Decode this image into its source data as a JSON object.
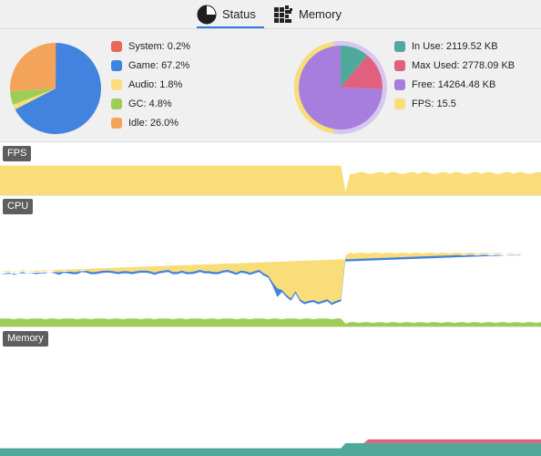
{
  "tabs": [
    {
      "label": "Status",
      "icon": "pie-chart-icon",
      "selected": true
    },
    {
      "label": "Memory",
      "icon": "memory-blocks-icon",
      "selected": false
    }
  ],
  "status_pie": {
    "legend": [
      {
        "label": "System: 0.2%",
        "color": "#e8685a"
      },
      {
        "label": "Game: 67.2%",
        "color": "#4383e0"
      },
      {
        "label": "Audio: 1.8%",
        "color": "#f8dd78"
      },
      {
        "label": "GC: 4.8%",
        "color": "#9dcd55"
      },
      {
        "label": "Idle: 26.0%",
        "color": "#f4a45a"
      }
    ]
  },
  "memory_pie": {
    "legend": [
      {
        "label": "In Use: 2119.52 KB",
        "color": "#4faa9c"
      },
      {
        "label": "Max Used: 2778.09 KB",
        "color": "#e0607e"
      },
      {
        "label": "Free: 14264.48 KB",
        "color": "#a77ede"
      },
      {
        "label": "FPS: 15.5",
        "color": "#f8dd78"
      }
    ]
  },
  "sections": {
    "fps": "FPS",
    "cpu": "CPU",
    "memory": "Memory"
  },
  "chart_data": [
    {
      "type": "pie",
      "series": [
        {
          "name": "System",
          "values": [
            0.2
          ]
        },
        {
          "name": "Game",
          "values": [
            67.2
          ]
        },
        {
          "name": "Audio",
          "values": [
            1.8
          ]
        },
        {
          "name": "GC",
          "values": [
            4.8
          ]
        },
        {
          "name": "Idle",
          "values": [
            26.0
          ]
        }
      ]
    },
    {
      "type": "pie",
      "series": [
        {
          "name": "In Use",
          "values": [
            2119.52
          ]
        },
        {
          "name": "Max Used",
          "values": [
            2778.09
          ]
        },
        {
          "name": "Free",
          "values": [
            14264.48
          ]
        }
      ]
    },
    {
      "type": "area",
      "xlabel": "",
      "ylabel": "",
      "series": [
        {
          "values": [
            18,
            18,
            18,
            18,
            18,
            18,
            18,
            18,
            18,
            18,
            18,
            18,
            18,
            18,
            18,
            18,
            18,
            18,
            18,
            18,
            18,
            18,
            18,
            18,
            18,
            18,
            18,
            18,
            18,
            18,
            18,
            18,
            18,
            18,
            18,
            18,
            18,
            18,
            18,
            18,
            18,
            18,
            18,
            18,
            18,
            18,
            18,
            18,
            18,
            18,
            18,
            18,
            18,
            18,
            18,
            18,
            18,
            18,
            18,
            18,
            18,
            18,
            18,
            18,
            18,
            18,
            18,
            18,
            18,
            18,
            18,
            18,
            18,
            18,
            18,
            18,
            2,
            13,
            13,
            14,
            14,
            13,
            13,
            14,
            14,
            13,
            14,
            14,
            13,
            13,
            14,
            14,
            13,
            14,
            14,
            13,
            13,
            14,
            14,
            13,
            14,
            14,
            13,
            13,
            14,
            14,
            13,
            14,
            14,
            13,
            13,
            14,
            14,
            13,
            14,
            14,
            13,
            13,
            14,
            14
          ]
        }
      ]
    },
    {
      "type": "area",
      "series": [
        {
          "name": "GC",
          "values": [
            11,
            11,
            11,
            10,
            11,
            11,
            10,
            11,
            11,
            11,
            10,
            11,
            11,
            10,
            11,
            11,
            11,
            10,
            11,
            11,
            10,
            11,
            11,
            11,
            10,
            11,
            11,
            10,
            11,
            11,
            11,
            10,
            11,
            11,
            10,
            11,
            11,
            11,
            10,
            11,
            11,
            10,
            11,
            11,
            11,
            10,
            11,
            11,
            10,
            11,
            11,
            11,
            10,
            11,
            11,
            10,
            11,
            11,
            11,
            10,
            11,
            11,
            10,
            11,
            11,
            11,
            10,
            11,
            11,
            10,
            11,
            11,
            11,
            10,
            11,
            11,
            4,
            6,
            6,
            5,
            6,
            6,
            5,
            6,
            6,
            5,
            6,
            6,
            5,
            6,
            6,
            5,
            6,
            6,
            5,
            6,
            6,
            5,
            6,
            6,
            5,
            6,
            6,
            5,
            6,
            6,
            5,
            6,
            6,
            5,
            6,
            6,
            5,
            6,
            6,
            5,
            6,
            6,
            5,
            6
          ]
        },
        {
          "name": "Game",
          "values": [
            62,
            63,
            64,
            62,
            63,
            65,
            64,
            63,
            62,
            63,
            64,
            65,
            63,
            62,
            64,
            63,
            62,
            63,
            65,
            64,
            63,
            62,
            63,
            64,
            65,
            63,
            62,
            64,
            63,
            62,
            63,
            65,
            64,
            63,
            62,
            63,
            64,
            65,
            63,
            62,
            64,
            63,
            62,
            63,
            65,
            64,
            63,
            62,
            63,
            64,
            65,
            63,
            62,
            64,
            63,
            62,
            63,
            65,
            60,
            58,
            45,
            30,
            38,
            30,
            25,
            35,
            25,
            20,
            22,
            24,
            20,
            22,
            24,
            20,
            22,
            24,
            90,
            92,
            91,
            93,
            92,
            91,
            93,
            92,
            91,
            93,
            92,
            91,
            93,
            92,
            91,
            93,
            92,
            91,
            93,
            92,
            91,
            93,
            92,
            91,
            93,
            92,
            91,
            93,
            92,
            91,
            93,
            92,
            91,
            93,
            92,
            91,
            93,
            92,
            91,
            93
          ]
        },
        {
          "name": "Audio",
          "values": [
            3,
            3,
            3,
            3,
            3,
            3,
            3,
            3,
            3,
            3,
            3,
            3,
            3,
            3,
            3,
            3,
            3,
            3,
            3,
            3,
            3,
            3,
            3,
            3,
            3,
            3,
            3,
            3,
            3,
            3,
            3,
            3,
            3,
            3,
            3,
            3,
            3,
            3,
            3,
            3,
            3,
            3,
            3,
            3,
            3,
            3,
            3,
            3,
            3,
            3,
            3,
            3,
            3,
            3,
            3,
            3,
            3,
            3,
            3,
            3,
            5,
            12,
            3,
            3,
            3,
            3,
            3,
            3,
            3,
            3,
            3,
            3,
            3,
            3,
            3,
            3,
            3,
            3,
            3,
            3,
            3,
            3,
            3,
            3,
            3,
            3,
            3,
            3,
            3,
            3,
            3,
            3,
            3,
            3,
            3,
            3,
            3,
            3,
            3,
            3,
            3,
            3,
            3,
            3,
            3,
            3,
            3,
            3,
            3,
            3,
            3,
            3,
            3,
            3,
            3,
            3,
            3,
            3,
            3,
            3
          ]
        }
      ]
    },
    {
      "type": "area",
      "series": [
        {
          "name": "In Use",
          "values": [
            6,
            6,
            6,
            6,
            6,
            6,
            6,
            6,
            6,
            6,
            6,
            6,
            6,
            6,
            6,
            6,
            6,
            6,
            6,
            6,
            6,
            6,
            6,
            6,
            6,
            6,
            6,
            6,
            6,
            6,
            6,
            6,
            6,
            6,
            6,
            6,
            6,
            6,
            6,
            6,
            6,
            6,
            6,
            6,
            6,
            6,
            6,
            6,
            6,
            6,
            6,
            6,
            6,
            6,
            6,
            6,
            6,
            6,
            6,
            6,
            6,
            6,
            6,
            6,
            6,
            6,
            6,
            6,
            6,
            6,
            6,
            6,
            6,
            6,
            6,
            6,
            10,
            10,
            10,
            10,
            10,
            10,
            10,
            10,
            10,
            10,
            10,
            10,
            10,
            10,
            10,
            10,
            10,
            10,
            10,
            10,
            10,
            10,
            10,
            10,
            10,
            10,
            10,
            10,
            10,
            10,
            10,
            10,
            10,
            10,
            10,
            10,
            10,
            10,
            10,
            10,
            10,
            10,
            10,
            10
          ]
        },
        {
          "name": "Max Used",
          "values": [
            0,
            0,
            0,
            0,
            0,
            0,
            0,
            0,
            0,
            0,
            0,
            0,
            0,
            0,
            0,
            0,
            0,
            0,
            0,
            0,
            0,
            0,
            0,
            0,
            0,
            0,
            0,
            0,
            0,
            0,
            0,
            0,
            0,
            0,
            0,
            0,
            0,
            0,
            0,
            0,
            0,
            0,
            0,
            0,
            0,
            0,
            0,
            0,
            0,
            0,
            0,
            0,
            0,
            0,
            0,
            0,
            0,
            0,
            0,
            0,
            0,
            0,
            0,
            0,
            0,
            0,
            0,
            0,
            0,
            0,
            0,
            0,
            0,
            0,
            0,
            0,
            0,
            0,
            0,
            0,
            0,
            3,
            3,
            3,
            3,
            3,
            3,
            3,
            3,
            3,
            3,
            3,
            3,
            3,
            3,
            3,
            3,
            3,
            3,
            3,
            3,
            3,
            3,
            3,
            3,
            3,
            3,
            3,
            3,
            3,
            3,
            3,
            3,
            3,
            3,
            3,
            3,
            3,
            3,
            3
          ]
        }
      ]
    }
  ]
}
